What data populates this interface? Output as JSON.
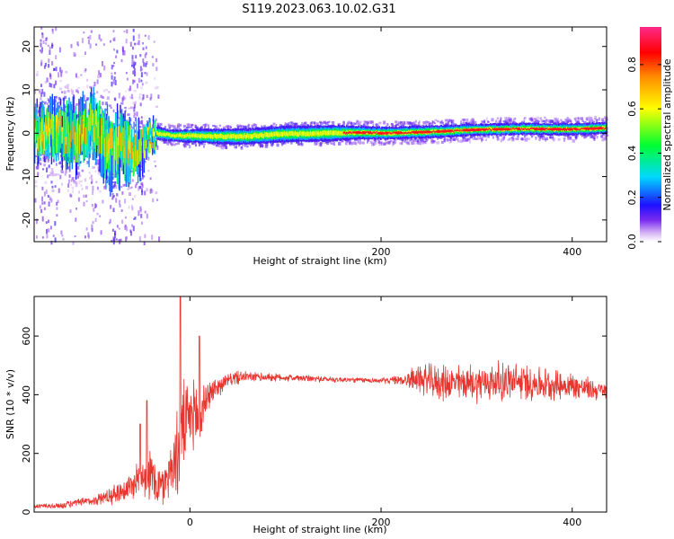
{
  "figure": {
    "title": "S119.2023.063.10.02.G31"
  },
  "chart_data": [
    {
      "type": "heatmap",
      "xlabel": "Height of straight line (km)",
      "ylabel": "Frequency (Hz)",
      "xlim": [
        -163,
        436
      ],
      "ylim": [
        -25,
        24.5
      ],
      "xticks": [
        0,
        200,
        400
      ],
      "yticks": [
        -20,
        -10,
        0,
        10,
        20
      ],
      "grid": false,
      "ridge": {
        "x": [
          -163,
          -140,
          -120,
          -100,
          -85,
          -70,
          -55,
          -45,
          -35,
          -20,
          0,
          50,
          100,
          150,
          175,
          200,
          250,
          300,
          350,
          400,
          436
        ],
        "freq": [
          0,
          1,
          -1,
          2,
          -4,
          -3,
          -5,
          -1,
          0,
          -0.5,
          -0.6,
          -0.8,
          -0.2,
          0,
          0.2,
          0,
          0.3,
          0.8,
          1.0,
          0.9,
          1.2
        ],
        "width": [
          5,
          6,
          7,
          6,
          8,
          7,
          6,
          3,
          1.5,
          1.2,
          1.5,
          1.8,
          1.8,
          1.8,
          1.5,
          1.4,
          1.4,
          1.3,
          1.3,
          1.3,
          1.3
        ]
      }
    },
    {
      "type": "colorbar",
      "label": "Normalized spectral amplitude",
      "range": [
        0,
        0.97
      ],
      "ticks": [
        "0.0",
        "0.2",
        "0.4",
        "0.6",
        "0.8"
      ],
      "tick_values": [
        0,
        0.2,
        0.4,
        0.6,
        0.8
      ]
    },
    {
      "type": "line",
      "xlabel": "Height of straight line (km)",
      "ylabel": "SNR (10 * v/v)",
      "xlim": [
        -163,
        436
      ],
      "ylim": [
        0,
        735
      ],
      "xticks": [
        0,
        200,
        400
      ],
      "yticks": [
        0,
        200,
        400,
        600
      ],
      "color": "#e8352f",
      "envelope": {
        "x": [
          -163,
          -140,
          -100,
          -80,
          -60,
          -50,
          -40,
          -30,
          -20,
          -12,
          -8,
          0,
          5,
          10,
          15,
          20,
          30,
          40,
          50,
          60,
          80,
          100,
          150,
          200,
          220,
          240,
          260,
          300,
          330,
          360,
          400,
          436
        ],
        "mean": [
          20,
          20,
          40,
          60,
          90,
          140,
          120,
          80,
          150,
          200,
          280,
          320,
          340,
          300,
          380,
          400,
          430,
          450,
          460,
          460,
          460,
          458,
          452,
          448,
          450,
          455,
          440,
          440,
          445,
          440,
          430,
          410
        ],
        "amp": [
          10,
          12,
          20,
          40,
          60,
          90,
          110,
          90,
          100,
          200,
          200,
          120,
          140,
          160,
          90,
          60,
          40,
          25,
          30,
          20,
          18,
          15,
          12,
          10,
          20,
          60,
          70,
          75,
          80,
          70,
          55,
          35
        ]
      },
      "spikes": [
        [
          -10,
          735
        ],
        [
          10,
          600
        ],
        [
          -45,
          380
        ],
        [
          -52,
          300
        ],
        [
          60,
          470
        ]
      ]
    }
  ]
}
